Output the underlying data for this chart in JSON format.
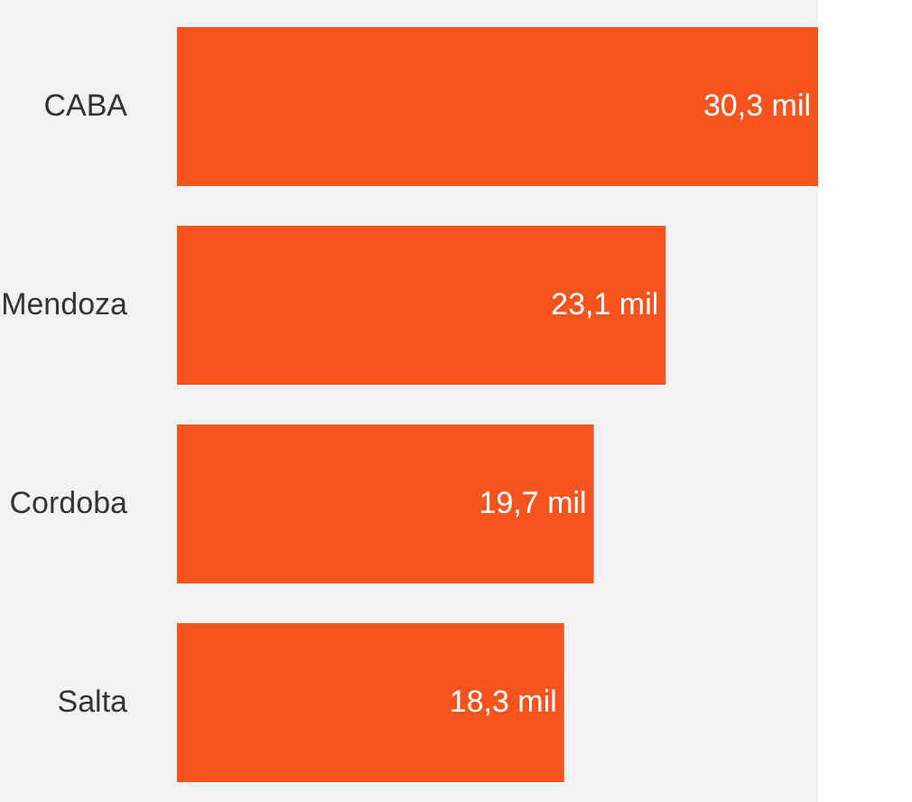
{
  "chart_data": {
    "type": "bar",
    "orientation": "horizontal",
    "categories": [
      "CABA",
      "Mendoza",
      "Cordoba",
      "Salta"
    ],
    "values": [
      30.3,
      23.1,
      19.7,
      18.3
    ],
    "color": "#f5541e",
    "value_labels": [
      "30,3 mil",
      "23,1 mil",
      "19,7 mil",
      "18,3 mil"
    ]
  }
}
